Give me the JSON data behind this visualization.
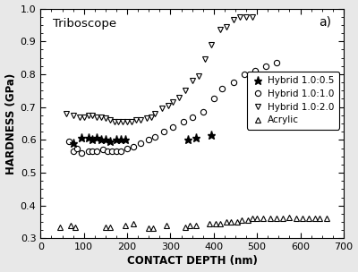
{
  "title_label": "Triboscope",
  "panel_label": "a)",
  "xlabel": "CONTACT DEPTH (nm)",
  "ylabel": "HARDNESS (GPa)",
  "xlim": [
    0,
    700
  ],
  "ylim": [
    0.3,
    1.0
  ],
  "yticks": [
    0.3,
    0.4,
    0.5,
    0.6,
    0.7,
    0.8,
    0.9,
    1.0
  ],
  "xticks": [
    0,
    100,
    200,
    300,
    400,
    500,
    600,
    700
  ],
  "hybrid_105_x": [
    75,
    95,
    110,
    120,
    130,
    140,
    150,
    160,
    175,
    185,
    195,
    340,
    360,
    395
  ],
  "hybrid_105_y": [
    0.59,
    0.605,
    0.605,
    0.6,
    0.605,
    0.6,
    0.6,
    0.595,
    0.6,
    0.6,
    0.6,
    0.6,
    0.605,
    0.615
  ],
  "hybrid_110_x": [
    65,
    75,
    85,
    95,
    110,
    120,
    130,
    145,
    155,
    165,
    175,
    185,
    200,
    215,
    230,
    250,
    265,
    285,
    305,
    330,
    350,
    375,
    400,
    420,
    445,
    470,
    495,
    520,
    545
  ],
  "hybrid_110_y": [
    0.595,
    0.565,
    0.575,
    0.56,
    0.565,
    0.565,
    0.565,
    0.57,
    0.565,
    0.565,
    0.565,
    0.565,
    0.575,
    0.58,
    0.59,
    0.6,
    0.61,
    0.625,
    0.64,
    0.655,
    0.67,
    0.685,
    0.725,
    0.755,
    0.775,
    0.8,
    0.81,
    0.825,
    0.835
  ],
  "hybrid_120_x": [
    60,
    75,
    90,
    100,
    110,
    120,
    130,
    140,
    150,
    160,
    170,
    180,
    190,
    200,
    210,
    220,
    230,
    245,
    255,
    265,
    280,
    295,
    305,
    320,
    335,
    350,
    365,
    380,
    395,
    415,
    430,
    445,
    460,
    475,
    490
  ],
  "hybrid_120_y": [
    0.68,
    0.675,
    0.67,
    0.67,
    0.675,
    0.675,
    0.67,
    0.67,
    0.665,
    0.66,
    0.655,
    0.655,
    0.655,
    0.655,
    0.655,
    0.66,
    0.66,
    0.665,
    0.67,
    0.68,
    0.695,
    0.705,
    0.715,
    0.73,
    0.75,
    0.78,
    0.795,
    0.845,
    0.89,
    0.935,
    0.945,
    0.965,
    0.975,
    0.975,
    0.975
  ],
  "acrylic_x": [
    45,
    70,
    80,
    150,
    160,
    195,
    215,
    250,
    260,
    290,
    335,
    345,
    360,
    390,
    405,
    415,
    430,
    440,
    455,
    465,
    480,
    490,
    500,
    515,
    530,
    545,
    560,
    575,
    590,
    605,
    620,
    635,
    645,
    660
  ],
  "acrylic_y": [
    0.335,
    0.34,
    0.335,
    0.335,
    0.335,
    0.34,
    0.345,
    0.33,
    0.33,
    0.34,
    0.335,
    0.34,
    0.34,
    0.345,
    0.345,
    0.345,
    0.35,
    0.35,
    0.35,
    0.355,
    0.355,
    0.36,
    0.36,
    0.36,
    0.36,
    0.36,
    0.36,
    0.365,
    0.36,
    0.36,
    0.36,
    0.36,
    0.36,
    0.36
  ],
  "face_color": "#e8e8e8"
}
